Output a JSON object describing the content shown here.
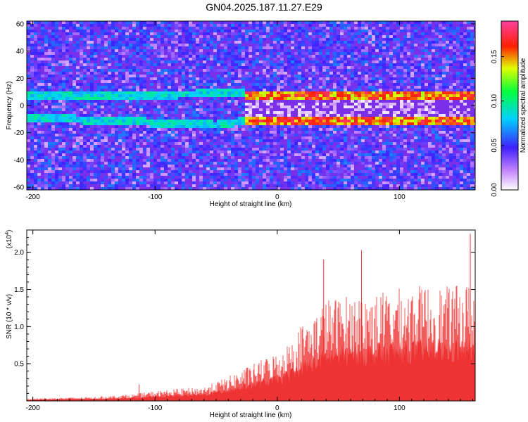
{
  "title": "GN04.2025.187.11.27.E29",
  "chart_data": [
    {
      "type": "heatmap",
      "xlabel": "Height of straight line (km)",
      "ylabel": "Frequency (Hz)",
      "xlim": [
        -205,
        162
      ],
      "ylim": [
        -62,
        62
      ],
      "xticks": [
        -200,
        -100,
        0,
        100
      ],
      "yticks": [
        -60,
        -40,
        -20,
        0,
        20,
        40,
        60
      ],
      "colorbar": {
        "label": "Normalized spectral amplitude",
        "range": [
          0,
          0.19
        ],
        "ticks": [
          "0.00",
          "0.05",
          "0.10",
          "0.15"
        ],
        "tick_values": [
          0.0,
          0.05,
          0.1,
          0.15
        ],
        "colormap": "rainbow: white-violet-blue-cyan-green-yellow-red-magenta"
      },
      "features": {
        "twin_bands_hz": [
          7,
          -11
        ],
        "bands_start_km": -25,
        "converge_near_km": -50,
        "peak_amplitude": 0.18
      }
    },
    {
      "type": "bar",
      "xlabel": "Height of straight line (km)",
      "ylabel": "SNR (10 * v/v)",
      "yscale_label": "(x10",
      "yscale_exp": "4",
      "yscale_close": ")",
      "xlim": [
        -205,
        162
      ],
      "ylim": [
        0,
        2.3
      ],
      "xticks": [
        -200,
        -100,
        0,
        100
      ],
      "yticks": [
        "0.5",
        "1.0",
        "1.5",
        "2.0"
      ],
      "ytick_values": [
        0.5,
        1.0,
        1.5,
        2.0
      ],
      "color": "#ee3333",
      "envelope": {
        "x_km": [
          -205,
          -150,
          -120,
          -100,
          -80,
          -60,
          -40,
          -20,
          0,
          10,
          20,
          30,
          40,
          60,
          80,
          100,
          120,
          140,
          160
        ],
        "snr_x1e4": [
          0.03,
          0.05,
          0.08,
          0.12,
          0.15,
          0.17,
          0.3,
          0.45,
          0.6,
          0.72,
          0.95,
          1.05,
          1.25,
          1.3,
          1.32,
          1.38,
          1.42,
          1.4,
          1.45
        ]
      },
      "peaks": [
        {
          "x_km": 38,
          "snr_x1e4": 1.9
        },
        {
          "x_km": 69,
          "snr_x1e4": 2.03
        },
        {
          "x_km": 158,
          "snr_x1e4": 2.25
        },
        {
          "x_km": -113,
          "snr_x1e4": 0.22
        }
      ]
    }
  ]
}
